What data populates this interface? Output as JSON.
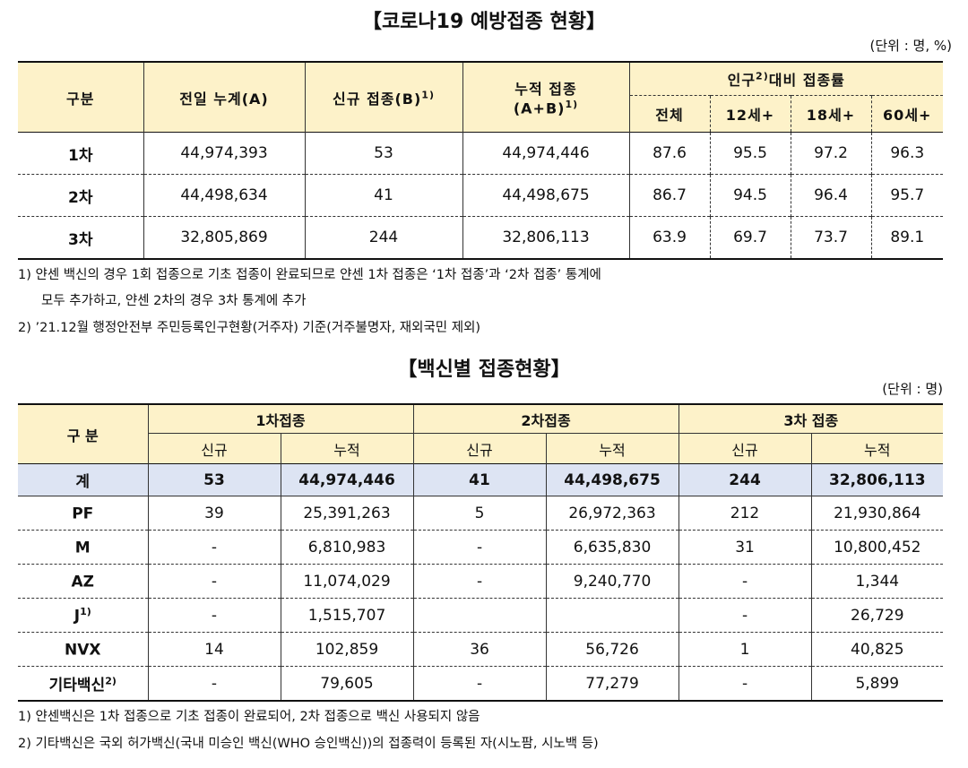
{
  "section1": {
    "title": "【코로나19 예방접종 현황】",
    "unit": "(단위 : 명, %)",
    "headers": {
      "category": "구분",
      "prev_total": "전일 누계(A)",
      "new": "신규 접종(B)",
      "new_sup": "1)",
      "cumulative_line1": "누적 접종",
      "cumulative_line2": "(A+B)",
      "cumulative_sup": "1)",
      "rate_prefix": "인구",
      "rate_sup": "2)",
      "rate_suffix": "대비 접종률",
      "sub": [
        "전체",
        "12세+",
        "18세+",
        "60세+"
      ]
    },
    "rows": [
      {
        "label": "1차",
        "prev": "44,974,393",
        "new": "53",
        "cum": "44,974,446",
        "all": "87.6",
        "r12": "95.5",
        "r18": "97.2",
        "r60": "96.3"
      },
      {
        "label": "2차",
        "prev": "44,498,634",
        "new": "41",
        "cum": "44,498,675",
        "all": "86.7",
        "r12": "94.5",
        "r18": "96.4",
        "r60": "95.7"
      },
      {
        "label": "3차",
        "prev": "32,805,869",
        "new": "244",
        "cum": "32,806,113",
        "all": "63.9",
        "r12": "69.7",
        "r18": "73.7",
        "r60": "89.1"
      }
    ],
    "notes": [
      "1) 얀센 백신의 경우 1회 접종으로 기초 접종이 완료되므로 얀센 1차 접종은 ‘1차 접종’과 ‘2차 접종’ 통계에",
      "모두 추가하고, 얀센 2차의 경우 3차 통계에 추가",
      "2) ’21.12월 행정안전부 주민등록인구현황(거주자) 기준(거주불명자, 재외국민 제외)"
    ]
  },
  "section2": {
    "title": "【백신별 접종현황】",
    "unit": "(단위 : 명)",
    "headers": {
      "category": "구 분",
      "dose1": "1차접종",
      "dose2": "2차접종",
      "dose3": "3차 접종",
      "new": "신규",
      "cum": "누적"
    },
    "total": {
      "label": "계",
      "d1n": "53",
      "d1c": "44,974,446",
      "d2n": "41",
      "d2c": "44,498,675",
      "d3n": "244",
      "d3c": "32,806,113"
    },
    "rows": [
      {
        "label": "PF",
        "sup": "",
        "d1n": "39",
        "d1c": "25,391,263",
        "d2n": "5",
        "d2c": "26,972,363",
        "d3n": "212",
        "d3c": "21,930,864"
      },
      {
        "label": "M",
        "sup": "",
        "d1n": "-",
        "d1c": "6,810,983",
        "d2n": "-",
        "d2c": "6,635,830",
        "d3n": "31",
        "d3c": "10,800,452"
      },
      {
        "label": "AZ",
        "sup": "",
        "d1n": "-",
        "d1c": "11,074,029",
        "d2n": "-",
        "d2c": "9,240,770",
        "d3n": "-",
        "d3c": "1,344"
      },
      {
        "label": "J",
        "sup": "1)",
        "d1n": "-",
        "d1c": "1,515,707",
        "d2n": "",
        "d2c": "",
        "d3n": "-",
        "d3c": "26,729"
      },
      {
        "label": "NVX",
        "sup": "",
        "d1n": "14",
        "d1c": "102,859",
        "d2n": "36",
        "d2c": "56,726",
        "d3n": "1",
        "d3c": "40,825"
      },
      {
        "label": "기타백신",
        "sup": "2)",
        "d1n": "-",
        "d1c": "79,605",
        "d2n": "-",
        "d2c": "77,279",
        "d3n": "-",
        "d3c": "5,899"
      }
    ],
    "notes": [
      "1) 얀센백신은 1차 접종으로 기초 접종이 완료되어, 2차 접종으로 백신 사용되지 않음",
      "2) 기타백신은 국외 허가백신(국내 미승인 백신(WHO 승인백신))의 접종력이 등록된 자(시노팜, 시노백 등)"
    ]
  }
}
